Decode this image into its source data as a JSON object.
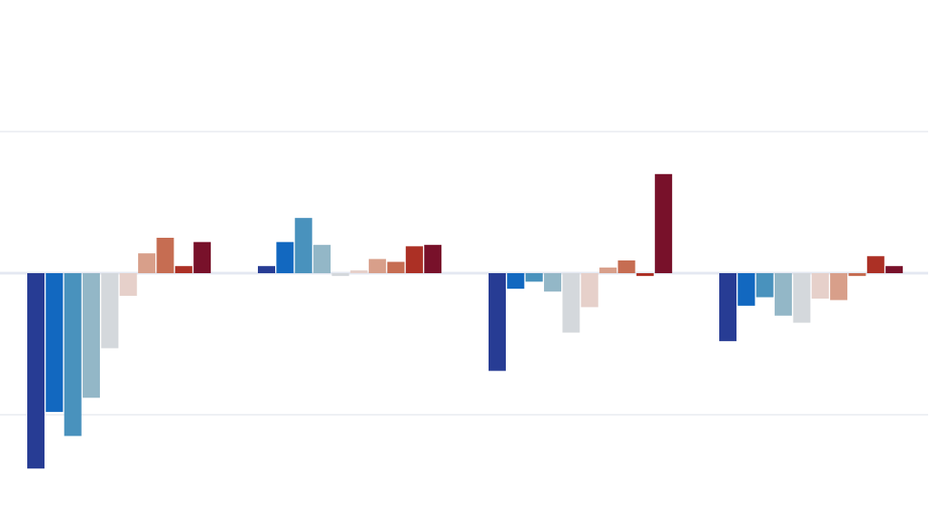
{
  "chart_data": {
    "type": "bar",
    "title": "",
    "xlabel": "",
    "ylabel": "",
    "categories": [
      "",
      "",
      "",
      ""
    ],
    "ylim": [
      -1.5,
      1.0
    ],
    "gridlines": [
      -1,
      0,
      1
    ],
    "grid": true,
    "legend": "none",
    "colors": [
      "#273c94",
      "#1268c0",
      "#4992bd",
      "#93b7c7",
      "#d4d8dc",
      "#e6d0ca",
      "#d89f8a",
      "#c66d52",
      "#ac3025",
      "#78112a"
    ],
    "series": [
      {
        "values": [
          -1.38,
          0.05,
          -0.69,
          -0.48
        ]
      },
      {
        "values": [
          -0.98,
          0.22,
          -0.11,
          -0.23
        ]
      },
      {
        "values": [
          -1.15,
          0.39,
          -0.06,
          -0.17
        ]
      },
      {
        "values": [
          -0.88,
          0.2,
          -0.13,
          -0.3
        ]
      },
      {
        "values": [
          -0.53,
          -0.02,
          -0.42,
          -0.35
        ]
      },
      {
        "values": [
          -0.16,
          0.02,
          -0.24,
          -0.18
        ]
      },
      {
        "values": [
          0.14,
          0.1,
          0.04,
          -0.19
        ]
      },
      {
        "values": [
          0.25,
          0.08,
          0.09,
          -0.02
        ]
      },
      {
        "values": [
          0.05,
          0.19,
          -0.02,
          0.12
        ]
      },
      {
        "values": [
          0.22,
          0.2,
          0.7,
          0.05
        ]
      }
    ]
  }
}
